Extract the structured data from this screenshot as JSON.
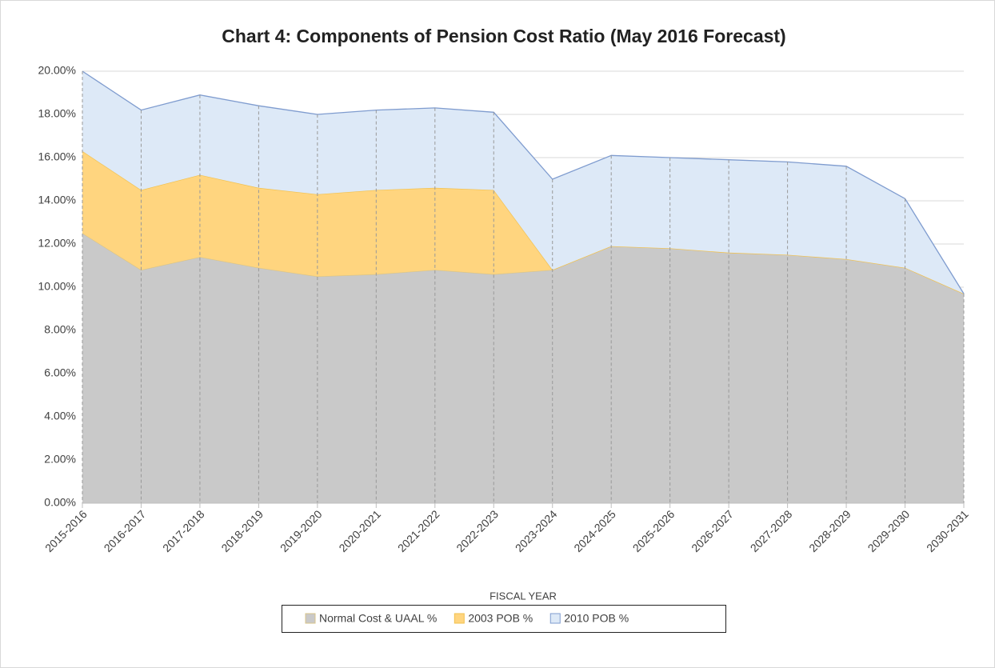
{
  "chart_data": {
    "type": "stacked_area",
    "title": "Chart 4: Components of Pension Cost Ratio (May 2016 Forecast)",
    "x_label": "FISCAL YEAR",
    "categories": [
      "2015-2016",
      "2016-2017",
      "2017-2018",
      "2018-2019",
      "2019-2020",
      "2020-2021",
      "2021-2022",
      "2022-2023",
      "2023-2024",
      "2024-2025",
      "2025-2026",
      "2026-2027",
      "2027-2028",
      "2028-2029",
      "2029-2030",
      "2030-2031"
    ],
    "series": [
      {
        "name": "Normal Cost & UAAL %",
        "color": "#c9c9c9",
        "stroke": "#d8c48a",
        "values": [
          12.5,
          10.8,
          11.4,
          10.9,
          10.5,
          10.6,
          10.8,
          10.6,
          10.8,
          11.9,
          11.8,
          11.6,
          11.5,
          11.3,
          10.9,
          9.7
        ]
      },
      {
        "name": "2003 POB %",
        "color": "#ffd57f",
        "stroke": "#f2c14e",
        "values": [
          3.8,
          3.7,
          3.8,
          3.7,
          3.8,
          3.9,
          3.8,
          3.9,
          0,
          0,
          0,
          0,
          0,
          0,
          0,
          0
        ]
      },
      {
        "name": "2010 POB %",
        "color": "#dde9f7",
        "stroke": "#7f9ccf",
        "values": [
          3.7,
          3.7,
          3.7,
          3.8,
          3.7,
          3.7,
          3.7,
          3.6,
          4.2,
          4.2,
          4.2,
          4.3,
          4.3,
          4.3,
          3.2,
          0
        ]
      }
    ],
    "ylim": [
      0,
      20
    ],
    "yticks": [
      {
        "value": 0,
        "label": "0.00%"
      },
      {
        "value": 2,
        "label": "2.00%"
      },
      {
        "value": 4,
        "label": "4.00%"
      },
      {
        "value": 6,
        "label": "6.00%"
      },
      {
        "value": 8,
        "label": "8.00%"
      },
      {
        "value": 10,
        "label": "10.00%"
      },
      {
        "value": 12,
        "label": "12.00%"
      },
      {
        "value": 14,
        "label": "14.00%"
      },
      {
        "value": 16,
        "label": "16.00%"
      },
      {
        "value": 18,
        "label": "18.00%"
      },
      {
        "value": 20,
        "label": "20.00%"
      }
    ],
    "grid": true,
    "legend": "bottom"
  }
}
